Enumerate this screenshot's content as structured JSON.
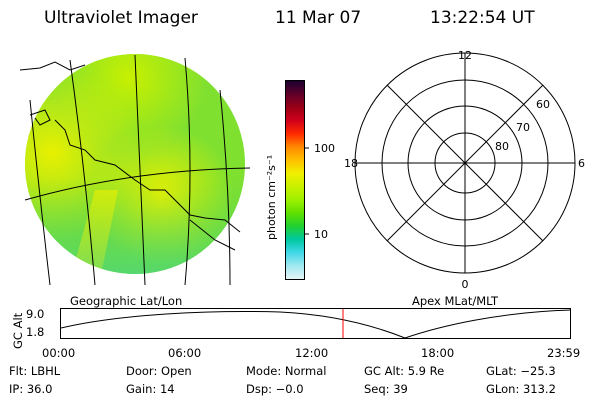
{
  "header": {
    "title": "Ultraviolet Imager",
    "date": "11 Mar 07",
    "time": "13:22:54 UT"
  },
  "colorbar": {
    "unit_label": "photon cm⁻²s⁻¹",
    "ticks": [
      "100",
      "10"
    ],
    "colors": [
      "#1a0030",
      "#60002a",
      "#9a0016",
      "#d0001a",
      "#ff2a00",
      "#ff8a00",
      "#ffc000",
      "#f0f000",
      "#c8f000",
      "#9ef000",
      "#60e000",
      "#20d030",
      "#00c8a0",
      "#40d8e8",
      "#a0e8f0",
      "#e6f4f6"
    ]
  },
  "left_panel": {
    "caption": "Geographic Lat/Lon"
  },
  "right_panel": {
    "caption": "Apex MLat/MLT",
    "mlt_labels": {
      "top": "12",
      "left": "18",
      "right": "6",
      "bottom": "0"
    },
    "lat_labels": [
      "60",
      "70",
      "80"
    ]
  },
  "orbit_plot": {
    "ylabel": "GC Alt",
    "yticks": [
      "9.0",
      "1.8"
    ],
    "xticks": [
      "00:00",
      "06:00",
      "12:00",
      "18:00",
      "23:59"
    ],
    "current_time_marker_color": "#ff0000"
  },
  "status": {
    "row1": {
      "flt": "Flt: LBHL",
      "door": "Door: Open",
      "mode": "Mode: Normal",
      "gc_alt": "GC Alt: 5.9 Re",
      "glat": "GLat: −25.3"
    },
    "row2": {
      "ip": "IP: 36.0",
      "gain": "Gain: 14",
      "dsp": "Dsp:   −0.0",
      "seq": "Seq: 39",
      "glon": "GLon: 313.2"
    }
  }
}
